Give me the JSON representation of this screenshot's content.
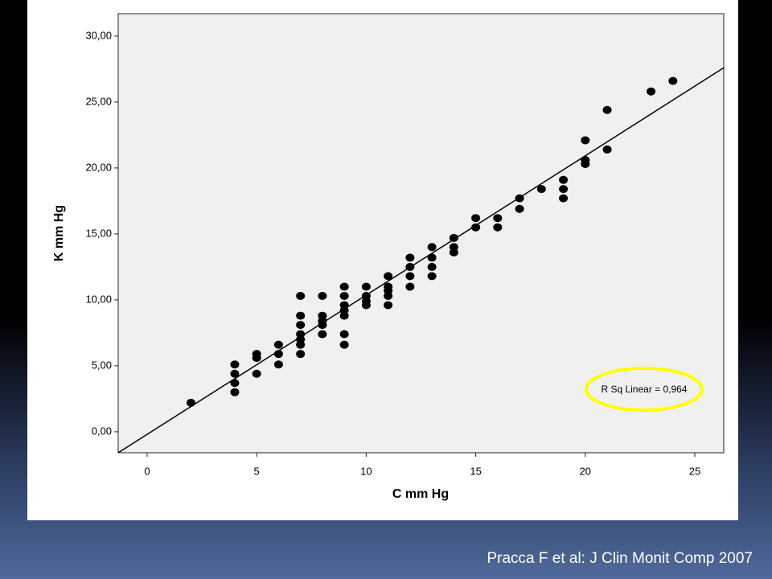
{
  "chart_data": {
    "type": "scatter",
    "x_label": "C mm Hg",
    "y_label": "K mm Hg",
    "annotation": "R Sq Linear = 0,964",
    "xlim": [
      -1.32,
      26.32
    ],
    "ylim": [
      -1.59,
      31.7
    ],
    "xticks": [
      0,
      5,
      10,
      15,
      20,
      25
    ],
    "yticks": [
      {
        "value": 0,
        "label": "0,00"
      },
      {
        "value": 5,
        "label": "5,00"
      },
      {
        "value": 10,
        "label": "10,00"
      },
      {
        "value": 15,
        "label": "15,00"
      },
      {
        "value": 20,
        "label": "20,00"
      },
      {
        "value": 25,
        "label": "25,00"
      },
      {
        "value": 30,
        "label": "30,00"
      }
    ],
    "series": [
      {
        "color": "#000000",
        "x": [
          2,
          4,
          4,
          4,
          4,
          5,
          5,
          5,
          6,
          6,
          6,
          7,
          7,
          7,
          7,
          7,
          7,
          7,
          8,
          8,
          8,
          8,
          8,
          9,
          9,
          9,
          9,
          9,
          9,
          9,
          10,
          10,
          10,
          10,
          11,
          11,
          11,
          11,
          11,
          12,
          12,
          12,
          12,
          13,
          13,
          13,
          13,
          14,
          14,
          14,
          15,
          15,
          16,
          16,
          17,
          17,
          18,
          19,
          19,
          19,
          20,
          20,
          20,
          21,
          21,
          23,
          24
        ],
        "values": [
          2.2,
          5.1,
          4.4,
          3.7,
          3.0,
          5.9,
          5.6,
          4.4,
          6.6,
          5.9,
          5.1,
          10.3,
          8.8,
          8.1,
          7.4,
          7.0,
          6.6,
          5.9,
          10.3,
          8.8,
          8.4,
          8.1,
          7.4,
          11.0,
          10.3,
          9.6,
          9.2,
          8.8,
          7.4,
          6.6,
          11.0,
          10.3,
          9.9,
          9.6,
          11.8,
          11.0,
          10.7,
          10.3,
          9.6,
          13.2,
          12.5,
          11.8,
          11.0,
          14.0,
          13.2,
          12.5,
          11.8,
          14.7,
          14.0,
          13.6,
          16.2,
          15.5,
          16.2,
          15.5,
          17.7,
          16.9,
          18.4,
          19.1,
          18.4,
          17.7,
          22.1,
          20.6,
          20.3,
          24.4,
          21.4,
          25.8,
          26.6
        ]
      }
    ],
    "fit_line": {
      "color": "#000000",
      "x": [
        -1.32,
        26.32
      ],
      "values": [
        -1.59,
        27.6
      ]
    }
  },
  "caption": "Pracca F et al: J Clin Monit Comp 2007"
}
